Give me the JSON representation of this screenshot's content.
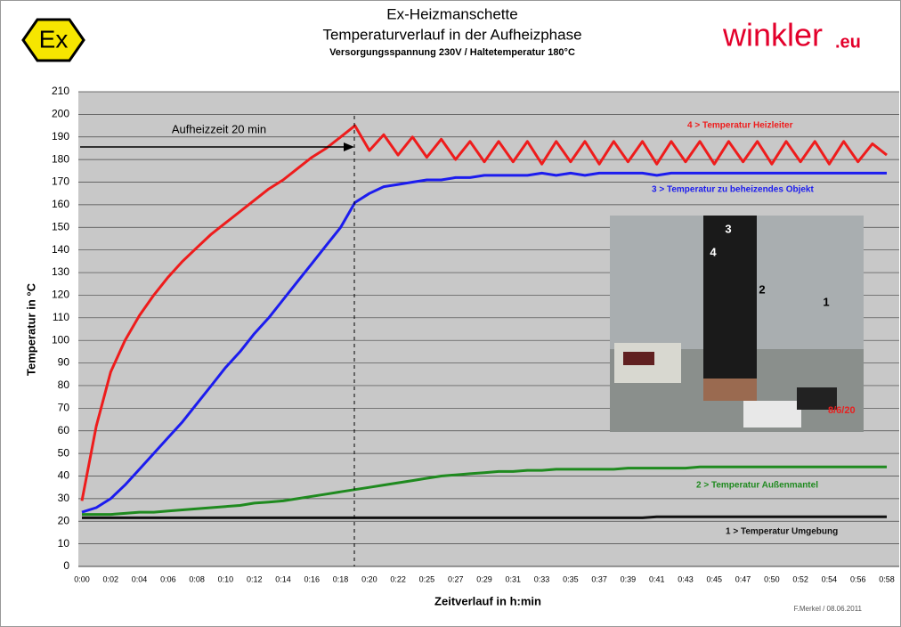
{
  "chart_data": {
    "type": "line",
    "logo": "Ex",
    "brand": "winkler",
    "brand_suffix": ".eu",
    "title": "Ex-Heizmanschette",
    "subtitle": "Temperaturverlauf in der Aufheizphase",
    "note": "Versorgungsspannung 230V / Haltetemperatur 180°C",
    "ylabel": "Temperatur in °C",
    "xlabel": "Zeitverlauf in h:min",
    "annotation": "Aufheizzeit 20 min",
    "footer": "F.Merkel / 08.06.2011",
    "photo_labels": [
      "1",
      "2",
      "3",
      "4"
    ],
    "photo_date": "8/6/20",
    "ylim": [
      0,
      210
    ],
    "yticks": [
      0,
      10,
      20,
      30,
      40,
      50,
      60,
      70,
      80,
      90,
      100,
      110,
      120,
      130,
      140,
      150,
      160,
      170,
      180,
      190,
      200,
      210
    ],
    "grid": true,
    "categories": [
      "0:00",
      null,
      "0:02",
      null,
      "0:04",
      null,
      "0:06",
      null,
      "0:08",
      null,
      "0:10",
      null,
      "0:12",
      null,
      "0:14",
      null,
      "0:16",
      null,
      "0:18",
      null,
      "0:20",
      null,
      "0:22",
      null,
      "0:25",
      null,
      "0:27",
      null,
      "0:29",
      null,
      "0:31",
      null,
      "0:33",
      null,
      "0:35",
      null,
      "0:37",
      null,
      "0:39",
      null,
      "0:41",
      null,
      "0:43",
      null,
      "0:45",
      null,
      "0:47",
      null,
      "0:50",
      null,
      "0:52",
      null,
      "0:54",
      null,
      "0:56",
      null,
      "0:58"
    ],
    "series": [
      {
        "name": "4 > Temperatur Heizleiter",
        "color": "#ee1c1c",
        "values": [
          29,
          62,
          86,
          100,
          111,
          120,
          128,
          135,
          141,
          147,
          152,
          157,
          162,
          167,
          171,
          176,
          181,
          185,
          190,
          195,
          184,
          191,
          182,
          190,
          181,
          189,
          180,
          188,
          179,
          188,
          179,
          188,
          178,
          188,
          179,
          188,
          178,
          188,
          179,
          188,
          178,
          188,
          179,
          188,
          178,
          188,
          179,
          188,
          178,
          188,
          179,
          188,
          178,
          188,
          179,
          187,
          182
        ]
      },
      {
        "name": "3 > Temperatur zu beheizendes Objekt",
        "color": "#1c1cee",
        "values": [
          24,
          26,
          30,
          36,
          43,
          50,
          57,
          64,
          72,
          80,
          88,
          95,
          103,
          110,
          118,
          126,
          134,
          142,
          150,
          161,
          165,
          168,
          169,
          170,
          171,
          171,
          172,
          172,
          173,
          173,
          173,
          173,
          174,
          173,
          174,
          173,
          174,
          174,
          174,
          174,
          173,
          174,
          174,
          174,
          174,
          174,
          174,
          174,
          174,
          174,
          174,
          174,
          174,
          174,
          174,
          174,
          174
        ]
      },
      {
        "name": "2 > Temperatur Außenmantel",
        "color": "#1f8a1f",
        "values": [
          23,
          23,
          23,
          23.5,
          24,
          24,
          24.5,
          25,
          25.5,
          26,
          26.5,
          27,
          28,
          28.5,
          29,
          30,
          31,
          32,
          33,
          34,
          35,
          36,
          37,
          38,
          39,
          40,
          40.5,
          41,
          41.5,
          42,
          42,
          42.5,
          42.5,
          43,
          43,
          43,
          43,
          43,
          43.5,
          43.5,
          43.5,
          43.5,
          43.5,
          44,
          44,
          44,
          44,
          44,
          44,
          44,
          44,
          44,
          44,
          44,
          44,
          44,
          44
        ]
      },
      {
        "name": "1 > Temperatur Umgebung",
        "color": "#111111",
        "values": [
          21.5,
          21.5,
          21.5,
          21.5,
          21.5,
          21.5,
          21.5,
          21.5,
          21.5,
          21.5,
          21.5,
          21.5,
          21.5,
          21.5,
          21.5,
          21.5,
          21.5,
          21.5,
          21.5,
          21.5,
          21.5,
          21.5,
          21.5,
          21.5,
          21.5,
          21.5,
          21.5,
          21.5,
          21.5,
          21.5,
          21.5,
          21.5,
          21.5,
          21.5,
          21.5,
          21.5,
          21.5,
          21.5,
          21.5,
          21.5,
          22,
          22,
          22,
          22,
          22,
          22,
          22,
          22,
          22,
          22,
          22,
          22,
          22,
          22,
          22,
          22,
          22
        ]
      }
    ]
  }
}
